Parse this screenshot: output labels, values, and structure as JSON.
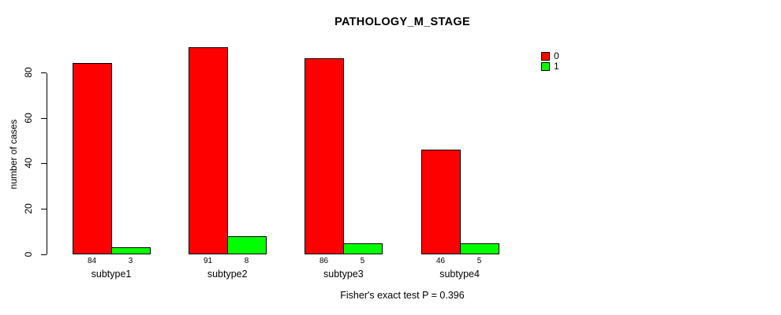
{
  "chart_data": {
    "type": "bar",
    "title": "PATHOLOGY_M_STAGE",
    "ylabel": "number of cases",
    "xlabel": "",
    "categories": [
      "subtype1",
      "subtype2",
      "subtype3",
      "subtype4"
    ],
    "series": [
      {
        "name": "0",
        "color": "#ff0000",
        "values": [
          84,
          91,
          86,
          46
        ]
      },
      {
        "name": "1",
        "color": "#00ff00",
        "values": [
          3,
          8,
          5,
          5
        ]
      }
    ],
    "value_labels_shown": true,
    "ylim": [
      0,
      91
    ],
    "yticks": [
      0,
      20,
      40,
      60,
      80
    ],
    "grid": false,
    "legend_position": "top-right",
    "annotation": "Fisher's exact test P = 0.396"
  },
  "colors": {
    "foreground": "#000000",
    "background": "#ffffff"
  }
}
